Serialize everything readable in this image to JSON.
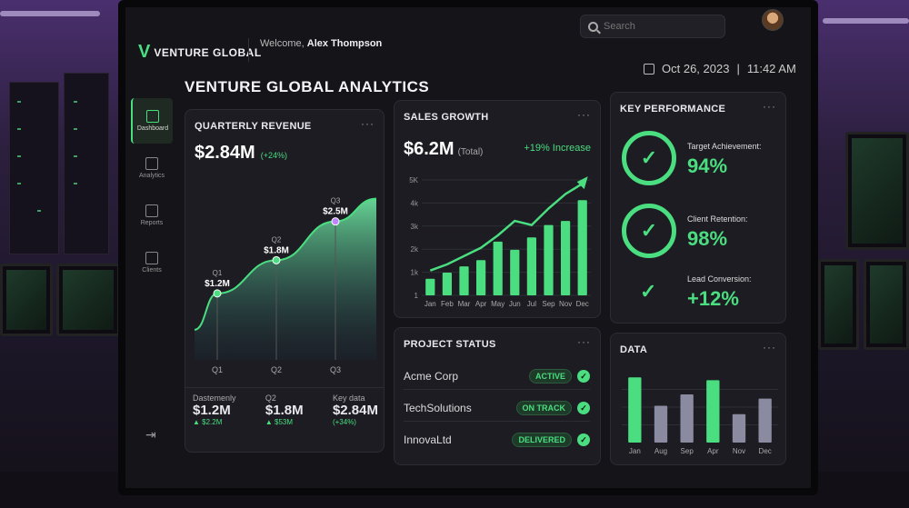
{
  "brand": {
    "logo": "V",
    "name": "VENTURE GLOBAL"
  },
  "header": {
    "welcome_prefix": "Welcome,",
    "user_name": "Alex Thompson",
    "search_placeholder": "Search",
    "date": "Oct 26, 2023",
    "time": "11:42 AM"
  },
  "page_title": "VENTURE GLOBAL ANALYTICS",
  "sidebar": {
    "items": [
      {
        "label": "Dashboard",
        "icon": "grid-icon",
        "active": true
      },
      {
        "label": "Analytics",
        "icon": "bar-chart-icon",
        "active": false
      },
      {
        "label": "Reports",
        "icon": "document-icon",
        "active": false
      },
      {
        "label": "Clients",
        "icon": "users-icon",
        "active": false
      }
    ],
    "logout_icon": "logout-icon"
  },
  "quarterly": {
    "title": "QUARTERLY REVENUE",
    "value": "$2.84M",
    "change": "(+24%)",
    "points": [
      {
        "label": "Q1",
        "value": "$1.2M"
      },
      {
        "label": "Q2",
        "value": "$1.8M"
      },
      {
        "label": "Q3",
        "value": "$2.5M"
      }
    ],
    "x_labels": [
      "Q1",
      "Q2",
      "Q3"
    ],
    "footer": [
      {
        "label": "Dastemenly",
        "value": "$1.2M",
        "delta": "▲ $2.2M"
      },
      {
        "label": "Q2",
        "value": "$1.8M",
        "delta": "▲ $53M"
      },
      {
        "label": "Key data",
        "value": "$2.84M",
        "delta": "(+34%)"
      }
    ]
  },
  "sales": {
    "title": "SALES GROWTH",
    "value": "$6.2M",
    "value_note": "(Total)",
    "increase": "+19% Increase",
    "y_ticks": [
      "5K",
      "4k",
      "3k",
      "2k",
      "1k",
      "1"
    ],
    "months": [
      "Jan",
      "Feb",
      "Mar",
      "Apr",
      "May",
      "Jun",
      "Jul",
      "Sep",
      "Nov",
      "Dec"
    ]
  },
  "kpi": {
    "title": "KEY PERFORMANCE",
    "items": [
      {
        "label": "Target Achievement:",
        "value": "94%"
      },
      {
        "label": "Client Retention:",
        "value": "98%"
      },
      {
        "label": "Lead Conversion:",
        "value": "+12%"
      }
    ]
  },
  "projects": {
    "title": "PROJECT STATUS",
    "rows": [
      {
        "name": "Acme Corp",
        "status": "ACTIVE"
      },
      {
        "name": "TechSolutions",
        "status": "ON TRACK"
      },
      {
        "name": "InnovaLtd",
        "status": "DELIVERED"
      }
    ]
  },
  "data_card": {
    "title": "DATA",
    "months": [
      "Jan",
      "Aug",
      "Sep",
      "Apr",
      "Nov",
      "Dec"
    ]
  },
  "colors": {
    "accent": "#4ade80",
    "bg": "#141419",
    "card": "#1c1c22"
  },
  "chart_data": [
    {
      "type": "area",
      "title": "QUARTERLY REVENUE",
      "categories": [
        "Q1",
        "Q2",
        "Q3"
      ],
      "values": [
        1.2,
        1.8,
        2.5
      ],
      "ylim": [
        0,
        3.2
      ]
    },
    {
      "type": "bar",
      "title": "SALES GROWTH",
      "categories": [
        "Jan",
        "Feb",
        "Mar",
        "Apr",
        "May",
        "Jun",
        "Jul",
        "Sep",
        "Nov",
        "Dec"
      ],
      "values": [
        0.8,
        1.1,
        1.4,
        1.7,
        2.6,
        2.2,
        2.8,
        3.4,
        3.6,
        4.6
      ],
      "trend": [
        1.2,
        1.5,
        1.9,
        2.3,
        2.9,
        3.6,
        3.4,
        4.2,
        4.9,
        5.4
      ],
      "ylim": [
        0,
        5.8
      ],
      "grid": true
    },
    {
      "type": "bar",
      "title": "DATA",
      "categories": [
        "Jan",
        "Aug",
        "Sep",
        "Apr",
        "Nov",
        "Dec"
      ],
      "values": [
        92,
        52,
        68,
        88,
        40,
        62
      ],
      "highlight": [
        true,
        false,
        false,
        true,
        false,
        false
      ],
      "ylim": [
        0,
        100
      ]
    }
  ]
}
